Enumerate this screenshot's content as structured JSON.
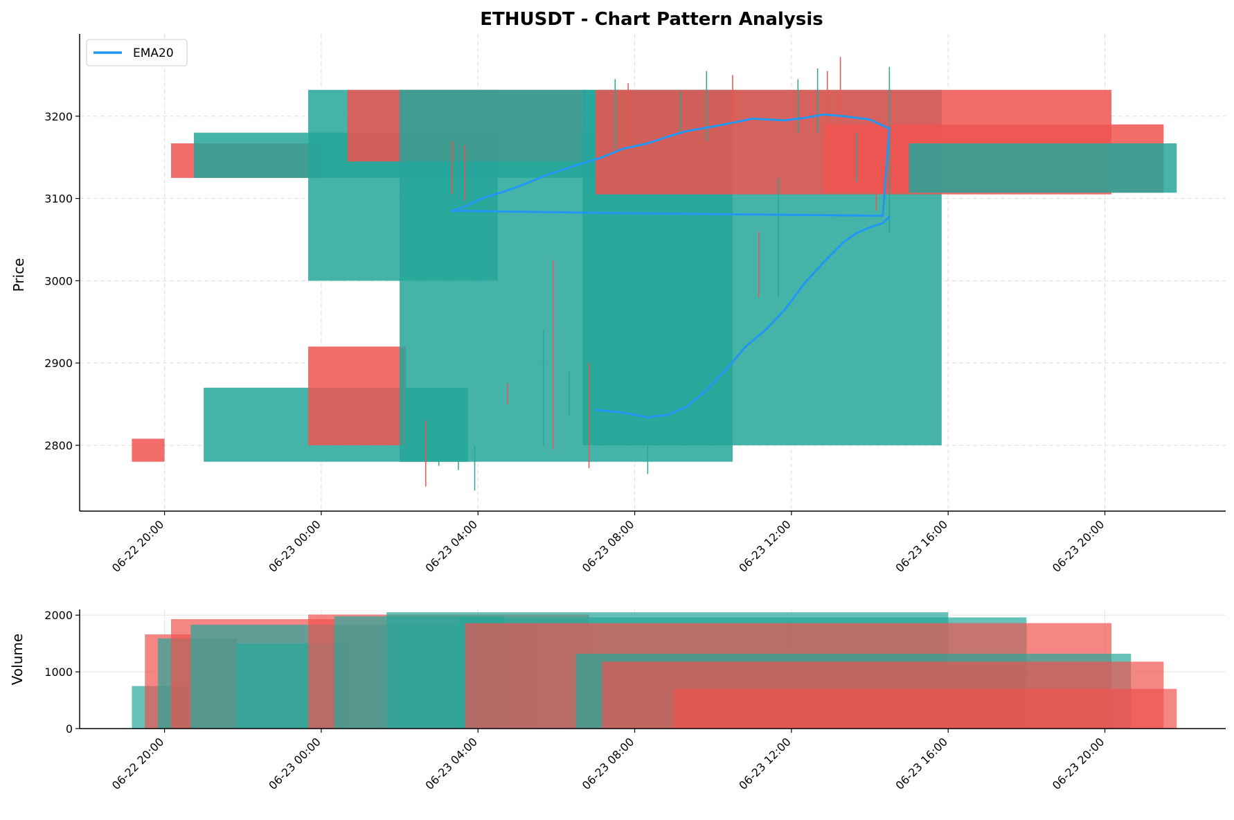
{
  "chart_data": [
    {
      "type": "candlestick",
      "title": "ETHUSDT - Chart Pattern Analysis",
      "xlabel": "",
      "ylabel": "Price",
      "ylim": [
        2720,
        3300
      ],
      "yticks": [
        2800,
        2900,
        3000,
        3100,
        3200
      ],
      "xlim": [
        "06-22 17:50",
        "06-23 23:05"
      ],
      "xticks": [
        "06-22 20:00",
        "06-23 00:00",
        "06-23 04:00",
        "06-23 08:00",
        "06-23 12:00",
        "06-23 16:00",
        "06-23 20:00"
      ],
      "grid": true,
      "legend": {
        "position": "top-left",
        "entries": [
          "EMA20"
        ]
      },
      "colors": {
        "up": "#26a69a",
        "down": "#ef5350",
        "ema": "#2196f3"
      },
      "zones": [
        {
          "start": "06-22 19:10",
          "end": "06-22 20:00",
          "low": 2780,
          "high": 2808,
          "dir": "down"
        },
        {
          "start": "06-22 20:10",
          "end": "06-23 00:00",
          "low": 3125,
          "high": 3167,
          "dir": "down"
        },
        {
          "start": "06-22 20:45",
          "end": "06-23 07:00",
          "low": 3125,
          "high": 3180,
          "dir": "up"
        },
        {
          "start": "06-22 21:00",
          "end": "06-23 03:45",
          "low": 2780,
          "high": 2870,
          "dir": "up"
        },
        {
          "start": "06-22 23:40",
          "end": "06-23 04:30",
          "low": 3000,
          "high": 3232,
          "dir": "up"
        },
        {
          "start": "06-23 00:40",
          "end": "06-23 06:45",
          "low": 3145,
          "high": 3232,
          "dir": "down"
        },
        {
          "start": "06-22 23:40",
          "end": "06-23 02:10",
          "low": 2800,
          "high": 2920,
          "dir": "down"
        },
        {
          "start": "06-23 02:00",
          "end": "06-23 10:30",
          "low": 2780,
          "high": 3232,
          "dir": "up"
        },
        {
          "start": "06-23 06:40",
          "end": "06-23 15:50",
          "low": 2800,
          "high": 3232,
          "dir": "up"
        },
        {
          "start": "06-23 07:00",
          "end": "06-23 20:10",
          "low": 3105,
          "high": 3232,
          "dir": "down"
        },
        {
          "start": "06-23 12:50",
          "end": "06-23 21:30",
          "low": 3107,
          "high": 3190,
          "dir": "down"
        },
        {
          "start": "06-23 15:00",
          "end": "06-23 21:50",
          "low": 3107,
          "high": 3167,
          "dir": "up"
        }
      ],
      "series": [
        {
          "name": "EMA20",
          "points": [
            [
              "06-23 03:20",
              3085
            ],
            [
              "06-23 03:40",
              3090
            ],
            [
              "06-23 04:05",
              3100
            ],
            [
              "06-23 04:35",
              3107
            ],
            [
              "06-23 05:10",
              3117
            ],
            [
              "06-23 05:50",
              3130
            ],
            [
              "06-23 06:30",
              3140
            ],
            [
              "06-23 07:10",
              3150
            ],
            [
              "06-23 07:40",
              3160
            ],
            [
              "06-23 08:20",
              3167
            ],
            [
              "06-23 08:50",
              3175
            ],
            [
              "06-23 09:20",
              3182
            ],
            [
              "06-23 09:50",
              3186
            ],
            [
              "06-23 10:30",
              3192
            ],
            [
              "06-23 11:00",
              3197
            ],
            [
              "06-23 11:50",
              3195
            ],
            [
              "06-23 12:20",
              3198
            ],
            [
              "06-23 12:50",
              3202
            ],
            [
              "06-23 13:20",
              3200
            ],
            [
              "06-23 14:00",
              3196
            ],
            [
              "06-23 14:30",
              3185
            ],
            [
              "06-23 14:20",
              3079
            ],
            [
              "06-23 08:00",
              3082
            ],
            [
              "06-23 03:20",
              3085
            ]
          ]
        },
        {
          "name": "EMA20",
          "points": [
            [
              "06-23 07:00",
              2843
            ],
            [
              "06-23 07:40",
              2840
            ],
            [
              "06-23 08:20",
              2834
            ],
            [
              "06-23 08:50",
              2837
            ],
            [
              "06-23 09:20",
              2847
            ],
            [
              "06-23 09:50",
              2867
            ],
            [
              "06-23 10:20",
              2892
            ],
            [
              "06-23 10:50",
              2920
            ],
            [
              "06-23 11:20",
              2940
            ],
            [
              "06-23 11:50",
              2965
            ],
            [
              "06-23 12:20",
              2997
            ],
            [
              "06-23 12:50",
              3023
            ],
            [
              "06-23 13:20",
              3047
            ],
            [
              "06-23 13:40",
              3058
            ],
            [
              "06-23 14:00",
              3065
            ],
            [
              "06-23 14:20",
              3070
            ],
            [
              "06-23 14:30",
              3078
            ]
          ]
        }
      ],
      "wicks": [
        [
          "06-23 03:20",
          3105,
          3170,
          "down"
        ],
        [
          "06-23 03:40",
          3098,
          3165,
          "down"
        ],
        [
          "06-23 03:55",
          3105,
          3150,
          "up"
        ],
        [
          "06-23 02:40",
          2750,
          2830,
          "down"
        ],
        [
          "06-23 03:00",
          2775,
          2820,
          "up"
        ],
        [
          "06-23 03:30",
          2770,
          2800,
          "up"
        ],
        [
          "06-23 03:55",
          2745,
          2800,
          "up"
        ],
        [
          "06-23 04:45",
          2850,
          2875,
          "down"
        ],
        [
          "06-23 05:40",
          2800,
          2940,
          "up"
        ],
        [
          "06-23 05:55",
          2795,
          3025,
          "down"
        ],
        [
          "06-23 06:20",
          2835,
          2890,
          "up"
        ],
        [
          "06-23 06:50",
          2772,
          2900,
          "down"
        ],
        [
          "06-23 07:30",
          3160,
          3245,
          "up"
        ],
        [
          "06-23 07:50",
          3165,
          3240,
          "down"
        ],
        [
          "06-23 08:20",
          2765,
          2840,
          "up"
        ],
        [
          "06-23 09:10",
          3180,
          3230,
          "up"
        ],
        [
          "06-23 09:50",
          3170,
          3255,
          "up"
        ],
        [
          "06-23 10:10",
          2940,
          3000,
          "up"
        ],
        [
          "06-23 10:30",
          3185,
          3250,
          "down"
        ],
        [
          "06-23 11:10",
          2980,
          3060,
          "down"
        ],
        [
          "06-23 11:40",
          2980,
          3125,
          "up"
        ],
        [
          "06-23 12:10",
          3180,
          3245,
          "up"
        ],
        [
          "06-23 12:40",
          3180,
          3258,
          "up"
        ],
        [
          "06-23 12:55",
          3175,
          3255,
          "down"
        ],
        [
          "06-23 13:15",
          3170,
          3272,
          "down"
        ],
        [
          "06-23 13:40",
          3120,
          3180,
          "up"
        ],
        [
          "06-23 14:10",
          3085,
          3180,
          "down"
        ],
        [
          "06-23 14:30",
          3058,
          3260,
          "up"
        ]
      ]
    },
    {
      "type": "bar",
      "xlabel": "",
      "ylabel": "Volume",
      "ylim": [
        0,
        2100
      ],
      "yticks": [
        0,
        1000,
        2000
      ],
      "grid": true,
      "bars": [
        {
          "start": "06-22 19:10",
          "end": "06-22 20:40",
          "value": 750,
          "dir": "up"
        },
        {
          "start": "06-22 19:30",
          "end": "06-22 20:40",
          "value": 1660,
          "dir": "down"
        },
        {
          "start": "06-22 19:50",
          "end": "06-22 21:50",
          "value": 1590,
          "dir": "up"
        },
        {
          "start": "06-22 20:10",
          "end": "06-23 00:20",
          "value": 1930,
          "dir": "down"
        },
        {
          "start": "06-22 20:40",
          "end": "06-23 05:30",
          "value": 1830,
          "dir": "up"
        },
        {
          "start": "06-22 21:50",
          "end": "06-23 00:40",
          "value": 1500,
          "dir": "up"
        },
        {
          "start": "06-22 23:40",
          "end": "06-23 06:50",
          "value": 2010,
          "dir": "down"
        },
        {
          "start": "06-23 00:20",
          "end": "06-23 04:40",
          "value": 1980,
          "dir": "up"
        },
        {
          "start": "06-23 01:40",
          "end": "06-23 16:00",
          "value": 2050,
          "dir": "up"
        },
        {
          "start": "06-23 03:30",
          "end": "06-23 18:00",
          "value": 1960,
          "dir": "up"
        },
        {
          "start": "06-23 03:40",
          "end": "06-23 20:10",
          "value": 1860,
          "dir": "down"
        },
        {
          "start": "06-23 06:30",
          "end": "06-23 20:40",
          "value": 1320,
          "dir": "up"
        },
        {
          "start": "06-23 07:10",
          "end": "06-23 21:30",
          "value": 1180,
          "dir": "down"
        },
        {
          "start": "06-23 09:00",
          "end": "06-23 21:50",
          "value": 700,
          "dir": "down"
        }
      ]
    }
  ]
}
